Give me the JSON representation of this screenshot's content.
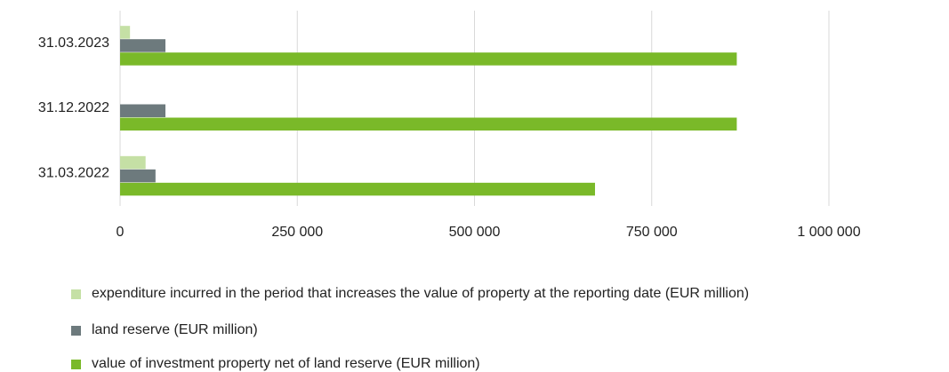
{
  "chart_data": {
    "type": "bar",
    "orientation": "horizontal",
    "categories": [
      "31.03.2023",
      "31.12.2022",
      "31.03.2022"
    ],
    "series": [
      {
        "name": "expenditure incurred in the period that increases the value of property at the reporting date (EUR million)",
        "color": "#c5e0a5",
        "values": [
          14000,
          0,
          36000
        ]
      },
      {
        "name": "land reserve (EUR million)",
        "color": "#6d7a7d",
        "values": [
          64000,
          64000,
          50000
        ]
      },
      {
        "name": "value of investment property net of land reserve (EUR million)",
        "color": "#7ab929",
        "values": [
          870000,
          870000,
          670000
        ]
      }
    ],
    "xlim": [
      0,
      1000000
    ],
    "xticks": [
      0,
      {
        "value": 250000,
        "label": "250 000"
      },
      {
        "value": 500000,
        "label": "500 000"
      },
      {
        "value": 750000,
        "label": "750 000"
      },
      {
        "value": 1000000,
        "label": "1 000 000"
      }
    ],
    "grid": true,
    "legend": "bottom"
  }
}
